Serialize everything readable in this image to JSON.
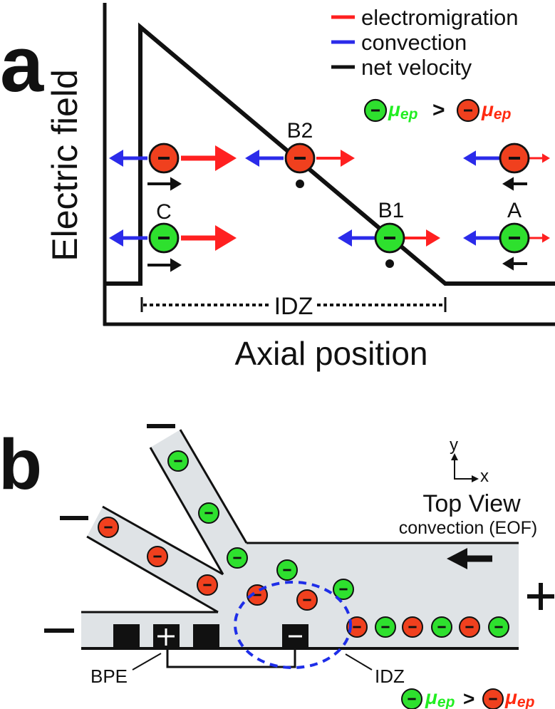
{
  "panel_a": {
    "label": "a",
    "y_axis_label": "Electric field",
    "x_axis_label": "Axial position",
    "legend": [
      {
        "label": "electromigration",
        "color": "#ff2020"
      },
      {
        "label": "convection",
        "color": "#2b2bea"
      },
      {
        "label": "net velocity",
        "color": "#111111"
      }
    ],
    "mobility_relation": {
      "left": "μ",
      "left_sub": "ep",
      "operator": ">",
      "right": "μ",
      "right_sub": "ep"
    },
    "point_labels": {
      "c": "C",
      "b2": "B2",
      "b1": "B1",
      "a": "A"
    },
    "idz_label": "IDZ"
  },
  "panel_b": {
    "label": "b",
    "axes": {
      "y": "y",
      "x": "x"
    },
    "view_title": "Top View",
    "flow_label": "convection (EOF)",
    "polarity": {
      "minus": "−",
      "plus": "+"
    },
    "bpe_label": "BPE",
    "idz_label": "IDZ",
    "mobility_relation": {
      "left": "μ",
      "left_sub": "ep",
      "operator": ">",
      "right": "μ",
      "right_sub": "ep"
    }
  },
  "colors": {
    "green_ion": "#2ee02e",
    "red_ion": "#f0401e",
    "green_text": "#22ee22",
    "red_text": "#ff2a10",
    "channel": "#dfe3e6",
    "idz_ring": "#1e2ee8"
  }
}
